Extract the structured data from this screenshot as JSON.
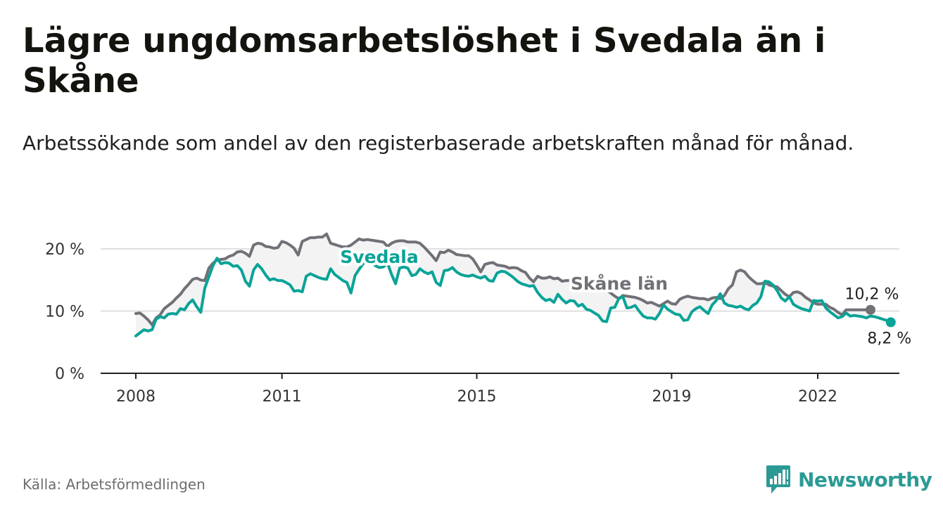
{
  "title": "Lägre ungdomsarbetslöshet i Svedala än i Skåne",
  "subtitle": "Arbetssökande som andel av den registerbaserade arbetskraften månad för månad.",
  "source": "Källa: Arbetsförmedlingen",
  "brand": "Newsworthy",
  "colors": {
    "svedala": "#0aa398",
    "skane": "#727077",
    "grid": "#d6d6d6",
    "axis": "#222222",
    "brand": "#2b9a95"
  },
  "chart_data": {
    "type": "line",
    "title": "Lägre ungdomsarbetslöshet i Svedala än i Skåne",
    "xlabel": "",
    "ylabel": "",
    "x_start": 2008.0,
    "x_step": 0.08333,
    "xlim": [
      2008.0,
      2023.1
    ],
    "ylim": [
      0,
      20
    ],
    "yticks": [
      {
        "value": 0,
        "label": "0 %"
      },
      {
        "value": 10,
        "label": "10 %"
      },
      {
        "value": 20,
        "label": "20 %"
      }
    ],
    "xticks": [
      {
        "value": 2008,
        "label": "2008"
      },
      {
        "value": 2011,
        "label": "2011"
      },
      {
        "value": 2015,
        "label": "2015"
      },
      {
        "value": 2019,
        "label": "2019"
      },
      {
        "value": 2022,
        "label": "2022"
      }
    ],
    "series": [
      {
        "name": "Skåne län",
        "end_label": "10,2 %",
        "values": [
          9.6,
          9.7,
          9.2,
          8.6,
          7.8,
          8.9,
          9.4,
          10.4,
          10.9,
          11.4,
          12.1,
          12.7,
          13.6,
          14.3,
          15.1,
          15.3,
          15.0,
          14.9,
          16.9,
          17.7,
          18.2,
          18.3,
          18.4,
          18.8,
          19.0,
          19.5,
          19.6,
          19.3,
          18.8,
          20.6,
          20.9,
          20.8,
          20.4,
          20.3,
          20.1,
          20.2,
          21.2,
          21.0,
          20.6,
          20.1,
          19.0,
          21.2,
          21.5,
          21.8,
          21.8,
          21.9,
          21.9,
          22.4,
          20.9,
          20.7,
          20.5,
          20.3,
          20.3,
          20.6,
          21.1,
          21.6,
          21.4,
          21.5,
          21.4,
          21.3,
          21.2,
          21.1,
          20.4,
          20.9,
          21.2,
          21.3,
          21.3,
          21.1,
          21.1,
          21.1,
          20.9,
          20.3,
          19.6,
          18.9,
          18.1,
          19.5,
          19.4,
          19.8,
          19.5,
          19.1,
          19.0,
          18.9,
          18.9,
          18.4,
          17.4,
          16.3,
          17.5,
          17.7,
          17.8,
          17.4,
          17.3,
          17.2,
          16.9,
          17.0,
          16.9,
          16.5,
          16.2,
          15.3,
          14.7,
          15.6,
          15.3,
          15.3,
          15.5,
          15.2,
          15.3,
          14.8,
          14.9,
          14.9,
          14.4,
          14.1,
          14.0,
          13.9,
          14.3,
          14.2,
          14.0,
          13.8,
          13.4,
          12.9,
          12.4,
          12.0,
          12.5,
          12.4,
          12.3,
          12.2,
          12.0,
          11.7,
          11.3,
          11.4,
          11.1,
          10.8,
          11.2,
          11.6,
          11.2,
          11.1,
          11.9,
          12.2,
          12.4,
          12.2,
          12.1,
          12.0,
          12.0,
          11.8,
          12.1,
          12.2,
          12.0,
          12.5,
          13.6,
          14.2,
          16.3,
          16.6,
          16.3,
          15.5,
          14.9,
          14.4,
          14.4,
          14.6,
          14.2,
          14.0,
          13.9,
          13.3,
          12.7,
          12.3,
          13.0,
          13.1,
          12.8,
          12.2,
          11.8,
          11.3,
          11.1,
          11.1,
          11.1,
          10.6,
          10.3,
          9.8,
          9.4,
          10.2,
          10.2,
          10.2,
          10.2,
          10.2,
          10.2,
          10.2
        ]
      },
      {
        "name": "Svedala",
        "end_label": "8,2 %",
        "values": [
          6.0,
          6.5,
          7.0,
          6.8,
          7.0,
          8.7,
          9.1,
          8.9,
          9.5,
          9.6,
          9.5,
          10.4,
          10.2,
          11.2,
          11.8,
          10.7,
          9.8,
          13.7,
          15.5,
          17.3,
          18.5,
          17.6,
          17.8,
          17.7,
          17.2,
          17.3,
          16.6,
          14.8,
          14.0,
          16.6,
          17.5,
          16.8,
          15.8,
          15.0,
          15.2,
          14.9,
          14.9,
          14.6,
          14.2,
          13.2,
          13.3,
          13.1,
          15.6,
          16.0,
          15.7,
          15.4,
          15.2,
          15.1,
          16.8,
          15.9,
          15.4,
          14.9,
          14.6,
          12.9,
          15.7,
          16.7,
          17.6,
          18.3,
          17.9,
          17.3,
          17.0,
          17.1,
          17.7,
          15.9,
          14.4,
          16.9,
          17.1,
          16.9,
          15.7,
          15.9,
          16.8,
          16.3,
          16.0,
          16.3,
          14.6,
          14.1,
          16.5,
          16.6,
          17.0,
          16.3,
          15.9,
          15.7,
          15.6,
          15.8,
          15.5,
          15.3,
          15.6,
          14.9,
          14.8,
          16.1,
          16.4,
          16.3,
          15.9,
          15.4,
          14.8,
          14.4,
          14.2,
          14.0,
          14.1,
          13.0,
          12.2,
          11.7,
          11.9,
          11.4,
          12.7,
          11.9,
          11.3,
          11.7,
          11.6,
          10.8,
          11.1,
          10.3,
          10.1,
          9.7,
          9.3,
          8.4,
          8.3,
          10.5,
          10.6,
          12.0,
          12.3,
          10.5,
          10.6,
          10.9,
          10.0,
          9.2,
          8.9,
          8.9,
          8.7,
          9.6,
          11.0,
          10.3,
          9.9,
          9.5,
          9.4,
          8.5,
          8.6,
          9.9,
          10.4,
          10.7,
          10.1,
          9.6,
          11.0,
          11.7,
          12.8,
          11.3,
          10.9,
          10.8,
          10.6,
          10.8,
          10.4,
          10.2,
          10.9,
          11.3,
          12.3,
          14.8,
          14.7,
          14.2,
          13.3,
          12.1,
          11.6,
          12.3,
          11.1,
          10.7,
          10.4,
          10.2,
          10.0,
          11.7,
          11.6,
          11.7,
          10.5,
          9.9,
          9.4,
          8.9,
          9.1,
          9.7,
          9.2,
          9.3,
          9.2,
          9.1,
          8.9,
          9.2,
          9.1,
          8.9,
          8.7,
          8.5,
          8.2
        ]
      }
    ],
    "annotations": [
      {
        "text": "Svedala",
        "series": "Svedala"
      },
      {
        "text": "Skåne län",
        "series": "Skåne län"
      }
    ]
  }
}
